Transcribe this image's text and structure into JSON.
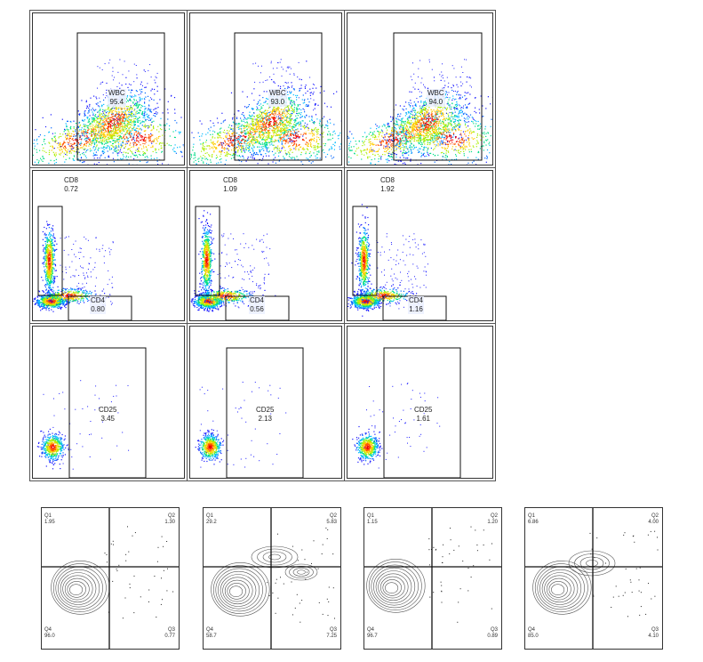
{
  "chart_data": [
    {
      "type": "scatter",
      "row": "wbc",
      "panels": [
        {
          "gate": "WBC",
          "percent": "95.4"
        },
        {
          "gate": "WBC",
          "percent": "93.0"
        },
        {
          "gate": "WBC",
          "percent": "94.0"
        }
      ]
    },
    {
      "type": "scatter",
      "row": "cd8_cd4",
      "panels": [
        {
          "gates": [
            {
              "name": "CD8",
              "percent": "0.72"
            },
            {
              "name": "CD4",
              "percent": "0.80"
            }
          ]
        },
        {
          "gates": [
            {
              "name": "CD8",
              "percent": "1.09"
            },
            {
              "name": "CD4",
              "percent": "0.56"
            }
          ]
        },
        {
          "gates": [
            {
              "name": "CD8",
              "percent": "1.92"
            },
            {
              "name": "CD4",
              "percent": "1.16"
            }
          ]
        }
      ]
    },
    {
      "type": "scatter",
      "row": "cd25",
      "panels": [
        {
          "gate": "CD25",
          "percent": "3.45"
        },
        {
          "gate": "CD25",
          "percent": "2.13"
        },
        {
          "gate": "CD25",
          "percent": "1.61"
        }
      ]
    },
    {
      "type": "scatter",
      "row": "quadrants",
      "panels": [
        {
          "Q1": {
            "name": "Q1",
            "value": "1.95"
          },
          "Q2": {
            "name": "Q2",
            "value": "1.30"
          },
          "Q3": {
            "name": "Q3",
            "value": "0.77"
          },
          "Q4": {
            "name": "Q4",
            "value": "96.0"
          }
        },
        {
          "Q1": {
            "name": "Q1",
            "value": "29.2"
          },
          "Q2": {
            "name": "Q2",
            "value": "5.83"
          },
          "Q3": {
            "name": "Q3",
            "value": "7.25"
          },
          "Q4": {
            "name": "Q4",
            "value": "58.7"
          }
        },
        {
          "Q1": {
            "name": "Q1",
            "value": "1.15"
          },
          "Q2": {
            "name": "Q2",
            "value": "1.20"
          },
          "Q3": {
            "name": "Q3",
            "value": "0.89"
          },
          "Q4": {
            "name": "Q4",
            "value": "96.7"
          }
        },
        {
          "Q1": {
            "name": "Q1",
            "value": "6.86"
          },
          "Q2": {
            "name": "Q2",
            "value": "4.00"
          },
          "Q3": {
            "name": "Q3",
            "value": "4.10"
          },
          "Q4": {
            "name": "Q4",
            "value": "85.0"
          }
        }
      ]
    }
  ]
}
